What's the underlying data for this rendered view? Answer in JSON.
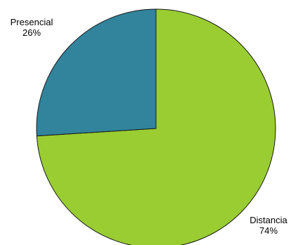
{
  "chart_data": {
    "type": "pie",
    "start_angle_deg": 0,
    "direction": "clockwise",
    "slices": [
      {
        "label": "Distancia",
        "value": 74,
        "value_label": "74%",
        "color": "#9acd32"
      },
      {
        "label": "Presencial",
        "value": 26,
        "value_label": "26%",
        "color": "#31849b"
      }
    ],
    "legend": "none"
  }
}
